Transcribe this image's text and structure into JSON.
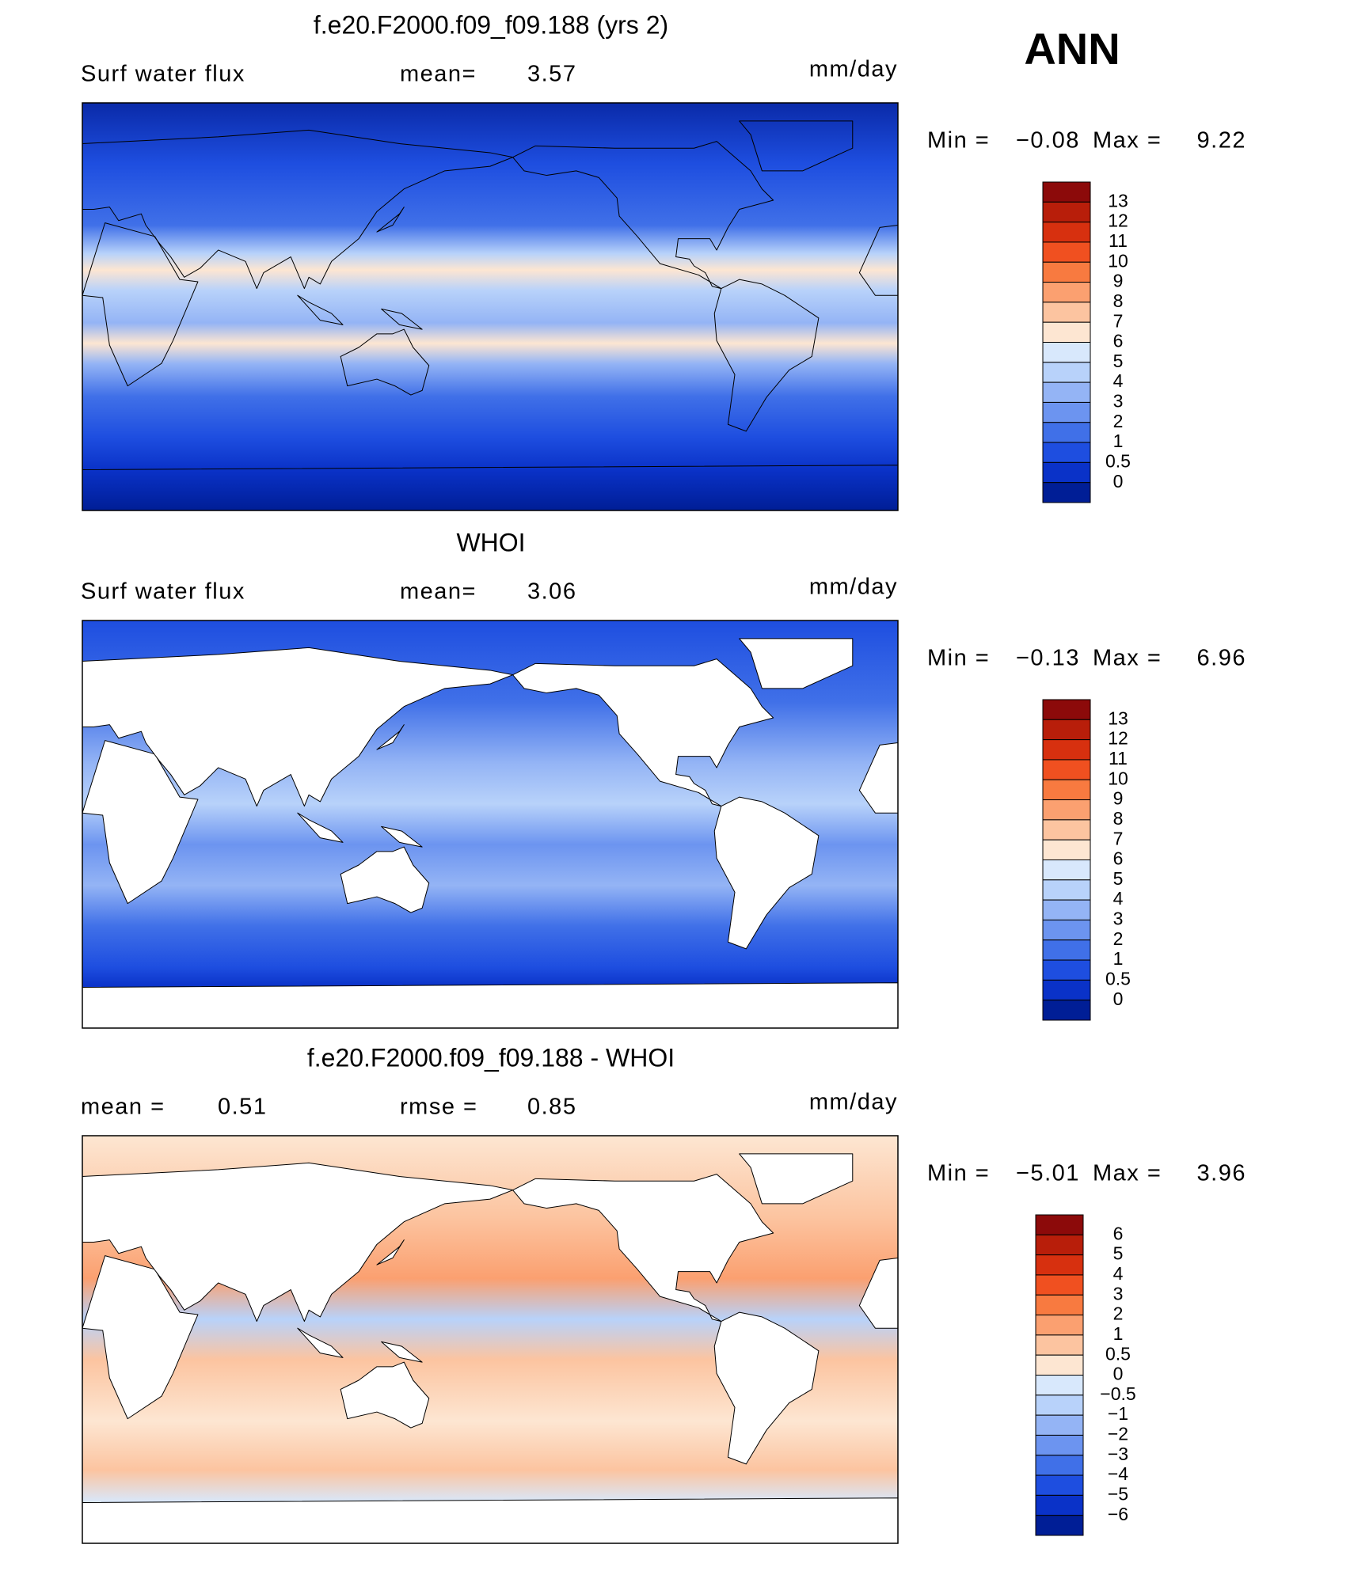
{
  "header": {
    "annotation": "ANN"
  },
  "panels": [
    {
      "title": "f.e20.F2000.f09_f09.188 (yrs 2)",
      "left_label": "Surf water flux",
      "mid_label": "mean=",
      "mid_value": "3.57",
      "units": "mm/day",
      "min_label": "Min =",
      "min_value": "−0.08",
      "max_label": "Max =",
      "max_value": "9.22",
      "colorbar": {
        "labels": [
          "13",
          "12",
          "11",
          "10",
          "9",
          "8",
          "7",
          "6",
          "5",
          "4",
          "3",
          "2",
          "1",
          "0.5",
          "0"
        ],
        "colors": [
          "#8c0a0a",
          "#b81e0a",
          "#d7300f",
          "#f05020",
          "#f87a40",
          "#fba070",
          "#fcc4a0",
          "#fde6d2",
          "#d8e8fc",
          "#b8d2fa",
          "#94b4f5",
          "#6c94f0",
          "#4070e8",
          "#1e4ee0",
          "#0a32c8",
          "#001e96"
        ]
      }
    },
    {
      "title": "WHOI",
      "left_label": "Surf water flux",
      "mid_label": "mean=",
      "mid_value": "3.06",
      "units": "mm/day",
      "min_label": "Min =",
      "min_value": "−0.13",
      "max_label": "Max =",
      "max_value": "6.96",
      "colorbar": {
        "labels": [
          "13",
          "12",
          "11",
          "10",
          "9",
          "8",
          "7",
          "6",
          "5",
          "4",
          "3",
          "2",
          "1",
          "0.5",
          "0"
        ],
        "colors": [
          "#8c0a0a",
          "#b81e0a",
          "#d7300f",
          "#f05020",
          "#f87a40",
          "#fba070",
          "#fcc4a0",
          "#fde6d2",
          "#d8e8fc",
          "#b8d2fa",
          "#94b4f5",
          "#6c94f0",
          "#4070e8",
          "#1e4ee0",
          "#0a32c8",
          "#001e96"
        ]
      }
    },
    {
      "title": "f.e20.F2000.f09_f09.188 - WHOI",
      "left_label": "mean =",
      "left_value": "0.51",
      "mid_label": "rmse =",
      "mid_value": "0.85",
      "units": "mm/day",
      "min_label": "Min =",
      "min_value": "−5.01",
      "max_label": "Max =",
      "max_value": "3.96",
      "colorbar": {
        "labels": [
          "6",
          "5",
          "4",
          "3",
          "2",
          "1",
          "0.5",
          "0",
          "−0.5",
          "−1",
          "−2",
          "−3",
          "−4",
          "−5",
          "−6"
        ],
        "colors": [
          "#8c0a0a",
          "#b81e0a",
          "#d7300f",
          "#f05020",
          "#f87a40",
          "#fba070",
          "#fcc4a0",
          "#fde6d2",
          "#d8e8fc",
          "#b8d2fa",
          "#94b4f5",
          "#6c94f0",
          "#4070e8",
          "#1e4ee0",
          "#0a32c8",
          "#001e96"
        ]
      }
    }
  ]
}
